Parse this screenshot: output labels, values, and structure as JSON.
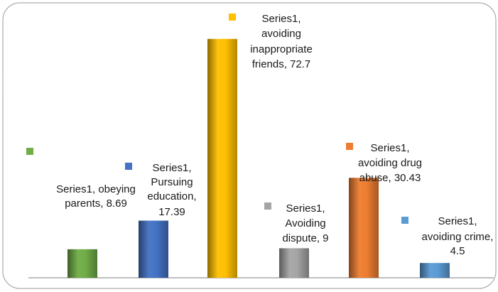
{
  "chart_data": {
    "type": "bar",
    "series_name": "Series1",
    "categories": [
      "obeying parents",
      "Pursuing education",
      "avoiding inappropriate friends",
      "Avoiding dispute",
      "avoiding drug abuse",
      "avoiding crime"
    ],
    "values": [
      8.69,
      17.39,
      72.7,
      9,
      30.43,
      4.5
    ],
    "colors": [
      "#70ad47",
      "#4472c4",
      "#ffc000",
      "#a5a5a5",
      "#ed7d31",
      "#5b9bd5"
    ],
    "data_labels": [
      [
        "Series1, obeying",
        "parents, 8.69"
      ],
      [
        "Series1,",
        "Pursuing",
        "education,",
        "17.39"
      ],
      [
        "Series1,",
        "avoiding",
        "inappropriate",
        "friends, 72.7"
      ],
      [
        "Series1,",
        "Avoiding",
        "dispute, 9"
      ],
      [
        "Series1,",
        "avoiding drug",
        "abuse, 30.43"
      ],
      [
        "Series1,",
        "avoiding crime,",
        "4.5"
      ]
    ],
    "ylim": [
      0,
      80
    ],
    "grid": false,
    "title": "",
    "xlabel": "",
    "ylabel": ""
  }
}
